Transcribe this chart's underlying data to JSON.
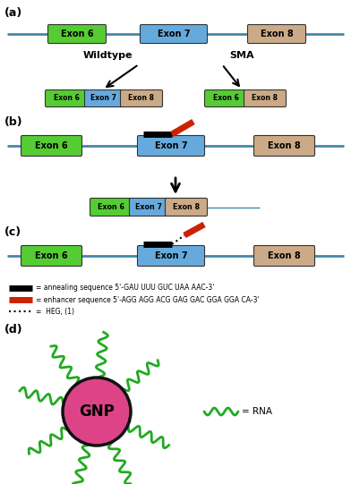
{
  "exon_colors": {
    "exon6": "#55cc33",
    "exon7": "#66aadd",
    "exon8": "#ccaa88"
  },
  "line_color": "#4488aa",
  "wildtype_label": "Wildtype",
  "sma_label": "SMA",
  "gnp_color": "#dd4488",
  "gnp_edge_color": "#111111",
  "rna_color": "#22aa22",
  "legend_annealing": "= annealing sequence 5'-GAU UUU GUC UAA AAC-3'",
  "legend_enhancer": "= enhancer sequence 5'-AGG AGG ACG GAG GAC GGA GGA CA-3'",
  "legend_heg": "=  HEG, (1)",
  "gnp_label": "GNP",
  "rna_label": "= RNA",
  "bg_color": "#ffffff"
}
